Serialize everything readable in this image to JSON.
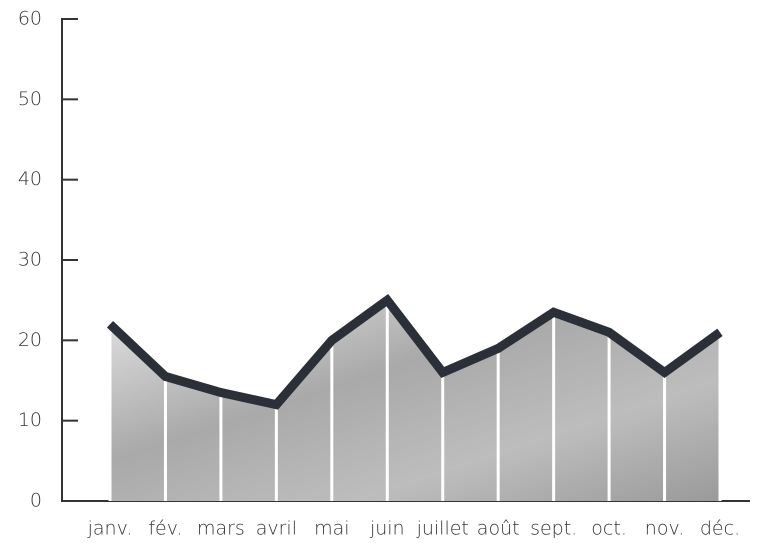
{
  "chart_data": {
    "type": "area",
    "categories": [
      "janv.",
      "fév.",
      "mars",
      "avril",
      "mai",
      "juin",
      "juillet",
      "août",
      "sept.",
      "oct.",
      "nov.",
      "déc."
    ],
    "values": [
      22,
      15.5,
      13.5,
      12,
      20,
      25,
      16,
      19,
      23.5,
      21,
      16,
      21
    ],
    "color": "#2b2f38",
    "ylim": [
      0,
      60
    ],
    "yticks": [
      0,
      10,
      20,
      30,
      40,
      50,
      60
    ]
  }
}
